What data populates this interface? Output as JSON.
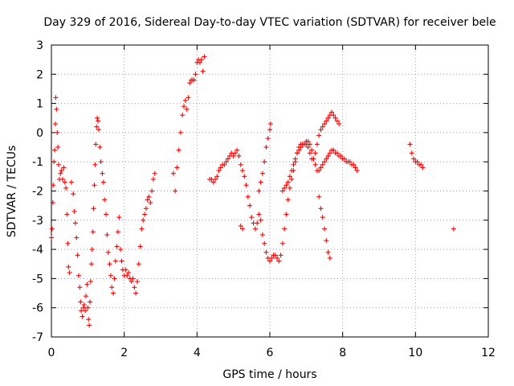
{
  "chart_data": {
    "type": "scatter",
    "title": "Day 329 of 2016, Sidereal Day-to-day VTEC variation (SDTVAR) for receiver bele",
    "xlabel": "GPS time / hours",
    "ylabel": "SDTVAR / TECUs",
    "xlim": [
      0,
      12
    ],
    "ylim": [
      -7,
      3
    ],
    "xticks": [
      0,
      2,
      4,
      6,
      8,
      10,
      12
    ],
    "yticks": [
      -7,
      -6,
      -5,
      -4,
      -3,
      -2,
      -1,
      0,
      1,
      2,
      3
    ],
    "grid": true,
    "marker": "+",
    "color": "#ff0000",
    "series": [
      {
        "name": "SDTVAR",
        "points": [
          [
            0.0,
            -3.6
          ],
          [
            0.02,
            -3.3
          ],
          [
            0.04,
            -2.4
          ],
          [
            0.05,
            -1.8
          ],
          [
            0.07,
            -1.0
          ],
          [
            0.09,
            -0.6
          ],
          [
            0.11,
            0.3
          ],
          [
            0.12,
            1.2
          ],
          [
            0.14,
            0.8
          ],
          [
            0.16,
            0.0
          ],
          [
            0.18,
            -0.5
          ],
          [
            0.2,
            -1.1
          ],
          [
            0.22,
            -1.6
          ],
          [
            0.25,
            -1.4
          ],
          [
            0.28,
            -1.3
          ],
          [
            0.31,
            -1.6
          ],
          [
            0.34,
            -1.2
          ],
          [
            0.37,
            -1.7
          ],
          [
            0.4,
            -1.9
          ],
          [
            0.43,
            -2.8
          ],
          [
            0.45,
            -3.8
          ],
          [
            0.47,
            -4.6
          ],
          [
            0.5,
            -4.8
          ],
          [
            0.55,
            -1.7
          ],
          [
            0.6,
            -2.1
          ],
          [
            0.63,
            -2.7
          ],
          [
            0.66,
            -3.1
          ],
          [
            0.69,
            -3.6
          ],
          [
            0.72,
            -4.2
          ],
          [
            0.75,
            -4.9
          ],
          [
            0.78,
            -5.3
          ],
          [
            0.8,
            -5.8
          ],
          [
            0.82,
            -6.1
          ],
          [
            0.85,
            -6.3
          ],
          [
            0.88,
            -6.0
          ],
          [
            0.9,
            -5.9
          ],
          [
            0.93,
            -6.1
          ],
          [
            0.95,
            -5.6
          ],
          [
            0.98,
            -5.2
          ],
          [
            1.0,
            -6.0
          ],
          [
            1.02,
            -6.4
          ],
          [
            1.04,
            -6.6
          ],
          [
            1.06,
            -5.8
          ],
          [
            1.08,
            -5.1
          ],
          [
            1.1,
            -4.5
          ],
          [
            1.12,
            -4.0
          ],
          [
            1.14,
            -3.4
          ],
          [
            1.16,
            -2.6
          ],
          [
            1.18,
            -1.8
          ],
          [
            1.2,
            -1.1
          ],
          [
            1.22,
            -0.4
          ],
          [
            1.24,
            0.2
          ],
          [
            1.26,
            0.5
          ],
          [
            1.28,
            0.4
          ],
          [
            1.3,
            0.1
          ],
          [
            1.33,
            -0.5
          ],
          [
            1.36,
            -1.0
          ],
          [
            1.4,
            -1.4
          ],
          [
            1.43,
            -1.7
          ],
          [
            1.46,
            -2.3
          ],
          [
            1.5,
            -2.8
          ],
          [
            1.53,
            -3.5
          ],
          [
            1.56,
            -4.1
          ],
          [
            1.6,
            -4.5
          ],
          [
            1.63,
            -4.9
          ],
          [
            1.66,
            -5.3
          ],
          [
            1.7,
            -5.5
          ],
          [
            1.73,
            -5.0
          ],
          [
            1.76,
            -4.4
          ],
          [
            1.8,
            -3.9
          ],
          [
            1.83,
            -3.4
          ],
          [
            1.86,
            -2.9
          ],
          [
            1.9,
            -4.0
          ],
          [
            1.93,
            -4.4
          ],
          [
            1.96,
            -4.7
          ],
          [
            2.0,
            -4.9
          ],
          [
            2.04,
            -4.7
          ],
          [
            2.08,
            -4.9
          ],
          [
            2.12,
            -4.8
          ],
          [
            2.16,
            -5.0
          ],
          [
            2.2,
            -5.1
          ],
          [
            2.24,
            -5.0
          ],
          [
            2.28,
            -5.3
          ],
          [
            2.32,
            -5.5
          ],
          [
            2.36,
            -5.1
          ],
          [
            2.4,
            -4.5
          ],
          [
            2.44,
            -3.9
          ],
          [
            2.48,
            -3.3
          ],
          [
            2.52,
            -3.0
          ],
          [
            2.56,
            -2.8
          ],
          [
            2.6,
            -2.6
          ],
          [
            2.64,
            -2.3
          ],
          [
            2.68,
            -2.2
          ],
          [
            2.72,
            -2.4
          ],
          [
            2.76,
            -2.0
          ],
          [
            2.8,
            -1.6
          ],
          [
            2.84,
            -1.4
          ],
          [
            3.35,
            -1.4
          ],
          [
            3.4,
            -2.0
          ],
          [
            3.45,
            -1.2
          ],
          [
            3.5,
            -0.6
          ],
          [
            3.55,
            0.0
          ],
          [
            3.6,
            0.6
          ],
          [
            3.64,
            0.9
          ],
          [
            3.68,
            1.1
          ],
          [
            3.72,
            0.8
          ],
          [
            3.76,
            1.2
          ],
          [
            3.8,
            1.7
          ],
          [
            3.84,
            1.8
          ],
          [
            3.88,
            1.8
          ],
          [
            3.92,
            1.8
          ],
          [
            3.96,
            2.0
          ],
          [
            4.0,
            2.4
          ],
          [
            4.04,
            2.5
          ],
          [
            4.08,
            2.4
          ],
          [
            4.12,
            2.5
          ],
          [
            4.16,
            2.1
          ],
          [
            4.2,
            2.6
          ],
          [
            4.35,
            -1.6
          ],
          [
            4.4,
            -1.6
          ],
          [
            4.45,
            -1.7
          ],
          [
            4.5,
            -1.6
          ],
          [
            4.55,
            -1.5
          ],
          [
            4.6,
            -1.3
          ],
          [
            4.65,
            -1.2
          ],
          [
            4.7,
            -1.1
          ],
          [
            4.75,
            -1.1
          ],
          [
            4.8,
            -1.0
          ],
          [
            4.85,
            -0.9
          ],
          [
            4.9,
            -0.8
          ],
          [
            4.95,
            -0.7
          ],
          [
            5.0,
            -0.8
          ],
          [
            5.05,
            -0.7
          ],
          [
            5.1,
            -0.6
          ],
          [
            5.15,
            -0.8
          ],
          [
            5.2,
            -1.1
          ],
          [
            5.25,
            -1.3
          ],
          [
            5.3,
            -1.5
          ],
          [
            5.35,
            -1.8
          ],
          [
            5.4,
            -2.2
          ],
          [
            5.45,
            -2.5
          ],
          [
            5.5,
            -2.9
          ],
          [
            5.55,
            -3.1
          ],
          [
            5.6,
            -3.3
          ],
          [
            5.65,
            -3.1
          ],
          [
            5.7,
            -2.8
          ],
          [
            5.75,
            -3.0
          ],
          [
            5.8,
            -3.5
          ],
          [
            5.85,
            -3.8
          ],
          [
            5.9,
            -4.1
          ],
          [
            5.95,
            -4.3
          ],
          [
            6.0,
            -4.4
          ],
          [
            6.05,
            -4.3
          ],
          [
            6.1,
            -4.2
          ],
          [
            6.15,
            -4.2
          ],
          [
            6.2,
            -4.3
          ],
          [
            6.25,
            -4.4
          ],
          [
            6.3,
            -4.2
          ],
          [
            6.35,
            -3.8
          ],
          [
            6.4,
            -3.3
          ],
          [
            6.45,
            -2.8
          ],
          [
            6.5,
            -2.3
          ],
          [
            6.55,
            -1.9
          ],
          [
            6.6,
            -1.6
          ],
          [
            6.65,
            -1.3
          ],
          [
            6.7,
            -1.0
          ],
          [
            6.75,
            -0.7
          ],
          [
            6.8,
            -0.5
          ],
          [
            6.85,
            -0.4
          ],
          [
            6.9,
            -0.4
          ],
          [
            6.95,
            -0.4
          ],
          [
            7.0,
            -0.3
          ],
          [
            7.05,
            -0.5
          ],
          [
            7.1,
            -0.7
          ],
          [
            7.15,
            -0.9
          ],
          [
            7.2,
            -0.9
          ],
          [
            7.25,
            -0.7
          ],
          [
            7.3,
            -0.4
          ],
          [
            7.35,
            -0.1
          ],
          [
            7.4,
            0.1
          ],
          [
            7.45,
            0.2
          ],
          [
            7.5,
            0.3
          ],
          [
            7.55,
            0.4
          ],
          [
            7.6,
            0.5
          ],
          [
            7.65,
            0.6
          ],
          [
            7.7,
            0.7
          ],
          [
            7.75,
            0.6
          ],
          [
            7.8,
            0.5
          ],
          [
            7.85,
            0.4
          ],
          [
            7.9,
            0.3
          ],
          [
            6.35,
            -2.0
          ],
          [
            6.4,
            -1.9
          ],
          [
            6.45,
            -1.8
          ],
          [
            6.5,
            -1.7
          ],
          [
            6.55,
            -1.5
          ],
          [
            6.6,
            -1.3
          ],
          [
            6.65,
            -1.1
          ],
          [
            6.7,
            -0.9
          ],
          [
            6.75,
            -0.7
          ],
          [
            6.8,
            -0.6
          ],
          [
            6.85,
            -0.5
          ],
          [
            6.9,
            -0.4
          ],
          [
            6.95,
            -0.4
          ],
          [
            7.0,
            -0.4
          ],
          [
            7.05,
            -0.3
          ],
          [
            7.1,
            -0.4
          ],
          [
            7.15,
            -0.6
          ],
          [
            7.2,
            -0.9
          ],
          [
            7.25,
            -1.1
          ],
          [
            7.3,
            -1.3
          ],
          [
            7.35,
            -2.2
          ],
          [
            7.4,
            -2.6
          ],
          [
            7.45,
            -2.9
          ],
          [
            7.5,
            -3.3
          ],
          [
            7.55,
            -3.7
          ],
          [
            7.6,
            -4.1
          ],
          [
            7.65,
            -4.3
          ],
          [
            7.35,
            -1.3
          ],
          [
            7.4,
            -1.2
          ],
          [
            7.45,
            -1.1
          ],
          [
            7.5,
            -1.0
          ],
          [
            7.55,
            -0.9
          ],
          [
            7.6,
            -0.8
          ],
          [
            7.65,
            -0.7
          ],
          [
            7.7,
            -0.6
          ],
          [
            7.75,
            -0.6
          ],
          [
            7.8,
            -0.7
          ],
          [
            7.85,
            -0.7
          ],
          [
            7.9,
            -0.8
          ],
          [
            7.95,
            -0.8
          ],
          [
            8.0,
            -0.9
          ],
          [
            8.05,
            -0.9
          ],
          [
            8.1,
            -1.0
          ],
          [
            8.15,
            -1.0
          ],
          [
            8.2,
            -1.0
          ],
          [
            8.25,
            -1.1
          ],
          [
            8.3,
            -1.1
          ],
          [
            8.35,
            -1.2
          ],
          [
            8.4,
            -1.3
          ],
          [
            5.2,
            -3.2
          ],
          [
            5.25,
            -3.3
          ],
          [
            5.7,
            -2.0
          ],
          [
            5.75,
            -1.7
          ],
          [
            5.8,
            -1.4
          ],
          [
            5.85,
            -1.0
          ],
          [
            5.9,
            -0.5
          ],
          [
            5.95,
            -0.2
          ],
          [
            6.0,
            0.1
          ],
          [
            6.02,
            0.3
          ],
          [
            9.85,
            -0.4
          ],
          [
            9.9,
            -0.7
          ],
          [
            9.95,
            -0.9
          ],
          [
            10.0,
            -1.0
          ],
          [
            10.05,
            -1.0
          ],
          [
            10.1,
            -1.1
          ],
          [
            10.15,
            -1.1
          ],
          [
            10.2,
            -1.2
          ],
          [
            11.05,
            -3.3
          ]
        ]
      }
    ]
  }
}
